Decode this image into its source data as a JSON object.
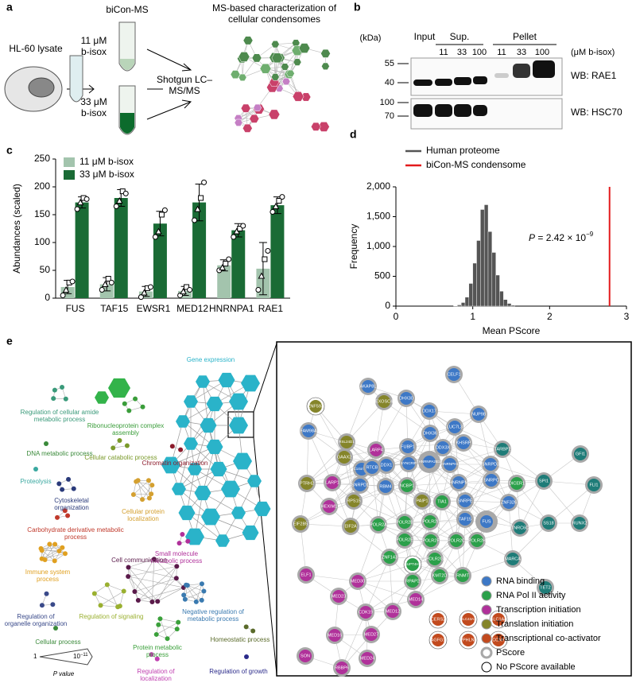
{
  "panel_labels": [
    "a",
    "b",
    "c",
    "d",
    "e"
  ],
  "panel_a": {
    "lysate": "HL-60 lysate",
    "method": "biCon-MS",
    "conditions": [
      "11 μM b-isox",
      "33 μM b-isox"
    ],
    "ms_label": "Shotgun LC–MS/MS",
    "result": "MS-based characterization of cellular condensomes"
  },
  "panel_b": {
    "kda_label": "(kDa)",
    "groups": [
      "Input",
      "Sup.",
      "Pellet"
    ],
    "lanes": [
      "11",
      "33",
      "100",
      "11",
      "33",
      "100"
    ],
    "conc_label": "(μM b-isox)",
    "blots": [
      {
        "label": "WB: RAE1",
        "markers": [
          "55",
          "40"
        ]
      },
      {
        "label": "WB: HSC70",
        "markers": [
          "100",
          "70"
        ]
      }
    ]
  },
  "chart_data": [
    {
      "type": "bar",
      "y_label": "Abundances (scaled)",
      "categories": [
        "FUS",
        "TAF15",
        "EWSR1",
        "MED12",
        "HNRNPA1",
        "RAE1"
      ],
      "series": [
        {
          "name": "11 μM b-isox",
          "color": "#a3c4ad",
          "values": [
            20,
            25,
            12,
            13,
            59,
            53
          ],
          "errors": [
            12,
            12,
            9,
            8,
            10,
            47
          ],
          "points": [
            [
              5,
              15,
              28,
              30
            ],
            [
              15,
              25,
              35,
              28
            ],
            [
              2,
              10,
              18,
              20
            ],
            [
              5,
              12,
              20,
              15
            ],
            [
              50,
              55,
              62,
              70
            ],
            [
              15,
              40,
              70,
              85
            ]
          ]
        },
        {
          "name": "33 μM b-isox",
          "color": "#1a6b35",
          "values": [
            172,
            180,
            134,
            172,
            122,
            167
          ],
          "errors": [
            10,
            15,
            22,
            33,
            12,
            15
          ],
          "points": [
            [
              160,
              172,
              180,
              178
            ],
            [
              165,
              175,
              192,
              188
            ],
            [
              110,
              120,
              150,
              158
            ],
            [
              140,
              160,
              180,
              208
            ],
            [
              110,
              120,
              125,
              130
            ],
            [
              155,
              165,
              175,
              182
            ]
          ]
        }
      ],
      "ylim": [
        0,
        250
      ],
      "yticks": [
        0,
        50,
        100,
        150,
        200,
        250
      ]
    },
    {
      "type": "histogram",
      "x_label": "Mean PScore",
      "y_label": "Frequency",
      "bins": [
        0.75,
        0.8,
        0.85,
        0.9,
        0.95,
        1.0,
        1.05,
        1.1,
        1.15,
        1.2,
        1.25,
        1.3,
        1.35,
        1.4,
        1.45,
        1.5,
        1.55
      ],
      "series": [
        {
          "name": "Human proteome",
          "color": "#555555",
          "counts": [
            5,
            20,
            60,
            150,
            380,
            720,
            1100,
            1620,
            1700,
            1250,
            900,
            520,
            250,
            110,
            45,
            15
          ]
        },
        {
          "name": "biCon-MS condensome",
          "color": "#e31a1c",
          "x": 2.78
        }
      ],
      "annotation": {
        "italic": "P",
        "text": " = 2.42 × 10",
        "exponent": "−9"
      },
      "xlim": [
        0,
        3
      ],
      "xticks": [
        0,
        1,
        2,
        3
      ],
      "ylim": [
        0,
        2000
      ],
      "yticks": [
        0,
        500,
        {
          "value": 1000,
          "label": "1,000"
        },
        {
          "value": 1500,
          "label": "1,500"
        },
        {
          "value": 2000,
          "label": "2,000"
        }
      ]
    }
  ],
  "panel_e": {
    "clusters": [
      {
        "label": "Gene expression",
        "color": "#2ab3c9"
      },
      {
        "label": "Regulation of cellular amide metabolic process",
        "color": "#3a9a7a"
      },
      {
        "label": "Ribonucleoprotein complex assembly",
        "color": "#3a9d3a"
      },
      {
        "label": "DNA metabolic process",
        "color": "#3a8a3a"
      },
      {
        "label": "Cellular catabolic process",
        "color": "#7a9a2a"
      },
      {
        "label": "Chromatin organization",
        "color": "#8b1a2a"
      },
      {
        "label": "Proteolysis",
        "color": "#3aa8a0"
      },
      {
        "label": "Cytoskeletal organization",
        "color": "#2a3a7a"
      },
      {
        "label": "Carbohydrate derivative metabolic process",
        "color": "#c0392b"
      },
      {
        "label": "Cellular protein localization",
        "color": "#d4a030"
      },
      {
        "label": "Small molecule metabolic process",
        "color": "#b0309a"
      },
      {
        "label": "Cell communication",
        "color": "#5a1a4a"
      },
      {
        "label": "Immune system process",
        "color": "#e0a020"
      },
      {
        "label": "Negative regulation of metabolic process",
        "color": "#3a7ab0"
      },
      {
        "label": "Regulation of organelle organization",
        "color": "#3a4a8a"
      },
      {
        "label": "Regulation of signaling",
        "color": "#9ab030"
      },
      {
        "label": "Homeostatic process",
        "color": "#5a6a2a"
      },
      {
        "label": "Cellular process",
        "color": "#3a8a3a"
      },
      {
        "label": "Protein metabolic process",
        "color": "#3aa03a"
      },
      {
        "label": "Regulation of localization",
        "color": "#c040b0"
      },
      {
        "label": "Regulation of growth",
        "color": "#2a2a8a"
      }
    ],
    "pvalue_legend": {
      "high": "1",
      "low": {
        "base": "10",
        "exponent": "−11"
      },
      "title": "P value"
    },
    "network": {
      "categories": [
        {
          "name": "RNA binding",
          "color": "#3d78c6"
        },
        {
          "name": "RNA Pol II activity",
          "color": "#2ba04a"
        },
        {
          "name": "Transcription initiation",
          "color": "#b0319a"
        },
        {
          "name": "Translation initiation",
          "color": "#85852a"
        },
        {
          "name": "Transcriptional co-activator",
          "color": "#c24a1e"
        }
      ],
      "ring_legend": [
        "PScore",
        "No PScore available"
      ],
      "nodes": [
        {
          "label": "AKAP8L",
          "color": "#3d78c6",
          "pscore": true
        },
        {
          "label": "CELF1",
          "color": "#3d78c6",
          "pscore": true
        },
        {
          "label": "DHX30",
          "color": "#3d78c6",
          "pscore": true
        },
        {
          "label": "ZNF593",
          "color": "#85852a",
          "pscore": false
        },
        {
          "label": "EXOSC4",
          "color": "#85852a",
          "pscore": true
        },
        {
          "label": "DDX17",
          "color": "#3d78c6",
          "pscore": true
        },
        {
          "label": "NUP98",
          "color": "#3d78c6",
          "pscore": true
        },
        {
          "label": "FAM98A",
          "color": "#3d78c6",
          "pscore": true
        },
        {
          "label": "LUC7L3",
          "color": "#3d78c6",
          "pscore": true
        },
        {
          "label": "KHSRP",
          "color": "#3d78c6",
          "pscore": true
        },
        {
          "label": "RSL24D1",
          "color": "#85852a",
          "pscore": true
        },
        {
          "label": "FUBP1",
          "color": "#3d78c6",
          "pscore": true
        },
        {
          "label": "DHX36",
          "color": "#3d78c6",
          "pscore": true
        },
        {
          "label": "DDX3X",
          "color": "#3d78c6",
          "pscore": true
        },
        {
          "label": "TARBP2",
          "color": "#1f7c78",
          "pscore": true
        },
        {
          "label": "LARP4",
          "color": "#b0319a",
          "pscore": true
        },
        {
          "label": "GAAX2",
          "color": "#85852a",
          "pscore": true
        },
        {
          "label": "C14orf166",
          "color": "#3d78c6",
          "pscore": true
        },
        {
          "label": "DDX1",
          "color": "#3d78c6",
          "pscore": true
        },
        {
          "label": "SYNCRIP",
          "color": "#3d78c6",
          "pscore": true
        },
        {
          "label": "HNRNPA2B1",
          "color": "#3d78c6",
          "pscore": true
        },
        {
          "label": "HNRNPH1",
          "color": "#3d78c6",
          "pscore": true
        },
        {
          "label": "SNRPD3",
          "color": "#3d78c6",
          "pscore": true
        },
        {
          "label": "GFI1",
          "color": "#1f7c78",
          "pscore": true
        },
        {
          "label": "PTRH2",
          "color": "#85852a",
          "pscore": true
        },
        {
          "label": "LARP1",
          "color": "#b0319a",
          "pscore": true
        },
        {
          "label": "SNRPD1",
          "color": "#3d78c6",
          "pscore": true
        },
        {
          "label": "RTCB",
          "color": "#3d78c6",
          "pscore": true
        },
        {
          "label": "RBM4",
          "color": "#3d78c6",
          "pscore": true
        },
        {
          "label": "NCBP1",
          "color": "#2ba04a",
          "pscore": true
        },
        {
          "label": "HNRNPM",
          "color": "#3d78c6",
          "pscore": true
        },
        {
          "label": "SNRPC",
          "color": "#3d78c6",
          "pscore": true
        },
        {
          "label": "DICER1",
          "color": "#2ba04a",
          "pscore": true
        },
        {
          "label": "SPI1",
          "color": "#1f7c78",
          "pscore": true
        },
        {
          "label": "FLI1",
          "color": "#1f7c78",
          "pscore": true
        },
        {
          "label": "HEXIM1",
          "color": "#b0319a",
          "pscore": true
        },
        {
          "label": "RPS15",
          "color": "#85852a",
          "pscore": true
        },
        {
          "label": "PAIP1",
          "color": "#85852a",
          "pscore": true
        },
        {
          "label": "TIA1",
          "color": "#2ba04a",
          "pscore": true
        },
        {
          "label": "SNRPE",
          "color": "#3d78c6",
          "pscore": true
        },
        {
          "label": "ZNF326",
          "color": "#3d78c6",
          "pscore": true
        },
        {
          "label": "EIF2B5",
          "color": "#85852a",
          "pscore": true
        },
        {
          "label": "EIF2A",
          "color": "#85852a",
          "pscore": true
        },
        {
          "label": "POLR2A",
          "color": "#2ba04a",
          "pscore": true
        },
        {
          "label": "POLR2B",
          "color": "#2ba04a",
          "pscore": true
        },
        {
          "label": "POLR2I",
          "color": "#2ba04a",
          "pscore": true
        },
        {
          "label": "TAF15",
          "color": "#3d78c6",
          "pscore": true
        },
        {
          "label": "FUS",
          "color": "#3d78c6",
          "pscore": true
        },
        {
          "label": "SS18",
          "color": "#1f7c78",
          "pscore": true
        },
        {
          "label": "RUNX2",
          "color": "#1f7c78",
          "pscore": true
        },
        {
          "label": "TNRC6C",
          "color": "#1f7c78",
          "pscore": true
        },
        {
          "label": "POLR2E",
          "color": "#2ba04a",
          "pscore": true
        },
        {
          "label": "POLR2F",
          "color": "#2ba04a",
          "pscore": true
        },
        {
          "label": "POLR2C",
          "color": "#2ba04a",
          "pscore": true
        },
        {
          "label": "POLR2H",
          "color": "#2ba04a",
          "pscore": true
        },
        {
          "label": "ZNF143",
          "color": "#2ba04a",
          "pscore": true
        },
        {
          "label": "SUPT4H1",
          "color": "#2ba04a",
          "pscore": false
        },
        {
          "label": "POLR2G",
          "color": "#2ba04a",
          "pscore": true
        },
        {
          "label": "MARCA",
          "color": "#1f7c78",
          "pscore": true
        },
        {
          "label": "ELF1",
          "color": "#b0319a",
          "pscore": true
        },
        {
          "label": "MED30",
          "color": "#b0319a",
          "pscore": true
        },
        {
          "label": "RPAP2",
          "color": "#2ba04a",
          "pscore": true
        },
        {
          "label": "KMT2D",
          "color": "#2ba04a",
          "pscore": true
        },
        {
          "label": "RNMT",
          "color": "#2ba04a",
          "pscore": true
        },
        {
          "label": "TET2",
          "color": "#1f7c78",
          "pscore": true
        },
        {
          "label": "MED23",
          "color": "#b0319a",
          "pscore": true
        },
        {
          "label": "CDK19",
          "color": "#b0319a",
          "pscore": true
        },
        {
          "label": "MED12",
          "color": "#b0319a",
          "pscore": true
        },
        {
          "label": "MED14",
          "color": "#b0319a",
          "pscore": true
        },
        {
          "label": "MED16",
          "color": "#b0319a",
          "pscore": true
        },
        {
          "label": "MED27",
          "color": "#b0319a",
          "pscore": true
        },
        {
          "label": "MED24",
          "color": "#b0319a",
          "pscore": true
        },
        {
          "label": "SON",
          "color": "#b0319a",
          "pscore": true
        },
        {
          "label": "RBBP6",
          "color": "#b0319a",
          "pscore": true
        },
        {
          "label": "CERS2",
          "color": "#c24a1e",
          "pscore": false
        },
        {
          "label": "SLC43A3",
          "color": "#c24a1e",
          "pscore": false
        },
        {
          "label": "SLC1A4",
          "color": "#c24a1e",
          "pscore": false
        },
        {
          "label": "AGFG1",
          "color": "#c24a1e",
          "pscore": false
        },
        {
          "label": "PPHLN1",
          "color": "#c24a1e",
          "pscore": false
        },
        {
          "label": "CCNY",
          "color": "#c24a1e",
          "pscore": false
        }
      ]
    }
  }
}
